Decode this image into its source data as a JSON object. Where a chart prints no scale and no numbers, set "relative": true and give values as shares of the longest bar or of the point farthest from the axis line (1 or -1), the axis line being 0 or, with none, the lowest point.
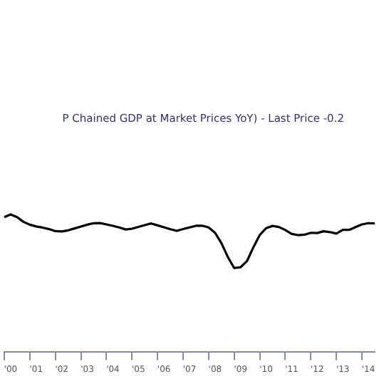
{
  "chart_data": {
    "type": "line",
    "relative": true,
    "legend": "top left",
    "grid": false,
    "marker": "none",
    "line_style": "solid",
    "tick_labels": "x",
    "categories": [
      null,
      "'00",
      null,
      null,
      null,
      "'01",
      null,
      null,
      null,
      "'02",
      null,
      null,
      null,
      "'03",
      null,
      null,
      null,
      "'04",
      null,
      null,
      null,
      "'05",
      null,
      null,
      null,
      "'06",
      null,
      null,
      null,
      "'07",
      null,
      null,
      null,
      "'08",
      null,
      null,
      null,
      "'09",
      null,
      null,
      null,
      "'10",
      null,
      null,
      null,
      "'11",
      null,
      null,
      null,
      "'12",
      null,
      null,
      null,
      "'13",
      null,
      null,
      null,
      "'14",
      null
    ],
    "series": [
      {
        "name": "P Chained GDP at Market Prices YoY) - Last Price -0.2",
        "color": "#000000",
        "values": [
          0.98,
          1,
          0.98,
          0.946,
          0.925,
          0.912,
          0.904,
          0.893,
          0.878,
          0.876,
          0.884,
          0.898,
          0.912,
          0.925,
          0.936,
          0.937,
          0.927,
          0.917,
          0.905,
          0.89,
          0.896,
          0.909,
          0.922,
          0.934,
          0.92,
          0.906,
          0.892,
          0.88,
          0.893,
          0.905,
          0.917,
          0.918,
          0.905,
          0.866,
          0.79,
          0.69,
          0.609,
          0.615,
          0.66,
          0.76,
          0.85,
          0.9,
          0.916,
          0.908,
          0.886,
          0.858,
          0.849,
          0.852,
          0.866,
          0.864,
          0.877,
          0.871,
          0.86,
          0.887,
          0.887,
          0.908,
          0.927,
          0.936,
          0.935
        ]
      }
    ]
  }
}
